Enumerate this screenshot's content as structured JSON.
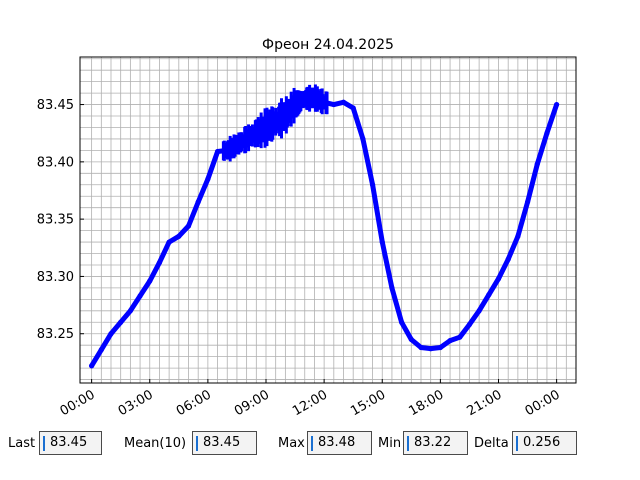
{
  "chart_data": {
    "type": "line",
    "title": "Фреон 24.04.2025",
    "xlabel": "",
    "ylabel": "",
    "x_unit": "hours",
    "xlim": [
      -0.6,
      25.0
    ],
    "ylim": [
      83.207,
      83.4915
    ],
    "x_ticks": [
      0,
      3,
      6,
      9,
      12,
      15,
      18,
      21,
      24
    ],
    "x_tick_labels": [
      "00:00",
      "03:00",
      "06:00",
      "09:00",
      "12:00",
      "15:00",
      "18:00",
      "21:00",
      "00:00"
    ],
    "y_ticks": [
      83.25,
      83.3,
      83.35,
      83.4,
      83.45
    ],
    "y_tick_labels": [
      "83.25",
      "83.30",
      "83.35",
      "83.40",
      "83.45"
    ],
    "grid": true,
    "series": [
      {
        "color": "#0000ff",
        "x": [
          0,
          0.5,
          1,
          1.5,
          2,
          2.5,
          3,
          3.5,
          4,
          4.5,
          5,
          5.5,
          6,
          6.5,
          7,
          7.5,
          8,
          8.5,
          9,
          9.5,
          10,
          10.5,
          11,
          11.5,
          12,
          12.5,
          13,
          13.5,
          14,
          14.5,
          15,
          15.5,
          16,
          16.5,
          17,
          17.5,
          18,
          18.5,
          19,
          19.5,
          20,
          20.5,
          21,
          21.5,
          22,
          22.5,
          23,
          23.5,
          24
        ],
        "y": [
          83.222,
          83.236,
          83.25,
          83.26,
          83.27,
          83.283,
          83.296,
          83.312,
          83.33,
          83.335,
          83.344,
          83.365,
          83.385,
          83.409,
          83.41,
          83.415,
          83.42,
          83.425,
          83.43,
          83.435,
          83.44,
          83.45,
          83.455,
          83.456,
          83.452,
          83.45,
          83.452,
          83.447,
          83.42,
          83.38,
          83.33,
          83.29,
          83.26,
          83.245,
          83.238,
          83.237,
          83.238,
          83.244,
          83.247,
          83.258,
          83.27,
          83.284,
          83.298,
          83.315,
          83.335,
          83.365,
          83.398,
          83.425,
          83.45
        ]
      }
    ],
    "noise_band": [
      {
        "x": [
          6.8,
          8.5
        ],
        "amplitude": 0.012
      },
      {
        "x": [
          8.5,
          10.5
        ],
        "amplitude": 0.018
      },
      {
        "x": [
          10.5,
          12.2
        ],
        "amplitude": 0.012
      }
    ]
  },
  "stats": [
    {
      "label": "Last",
      "value": "83.45"
    },
    {
      "label": "Mean(10)",
      "value": "83.45"
    },
    {
      "label": "Max",
      "value": "83.48"
    },
    {
      "label": "Min",
      "value": "83.22"
    },
    {
      "label": "Delta",
      "value": "0.256"
    }
  ]
}
